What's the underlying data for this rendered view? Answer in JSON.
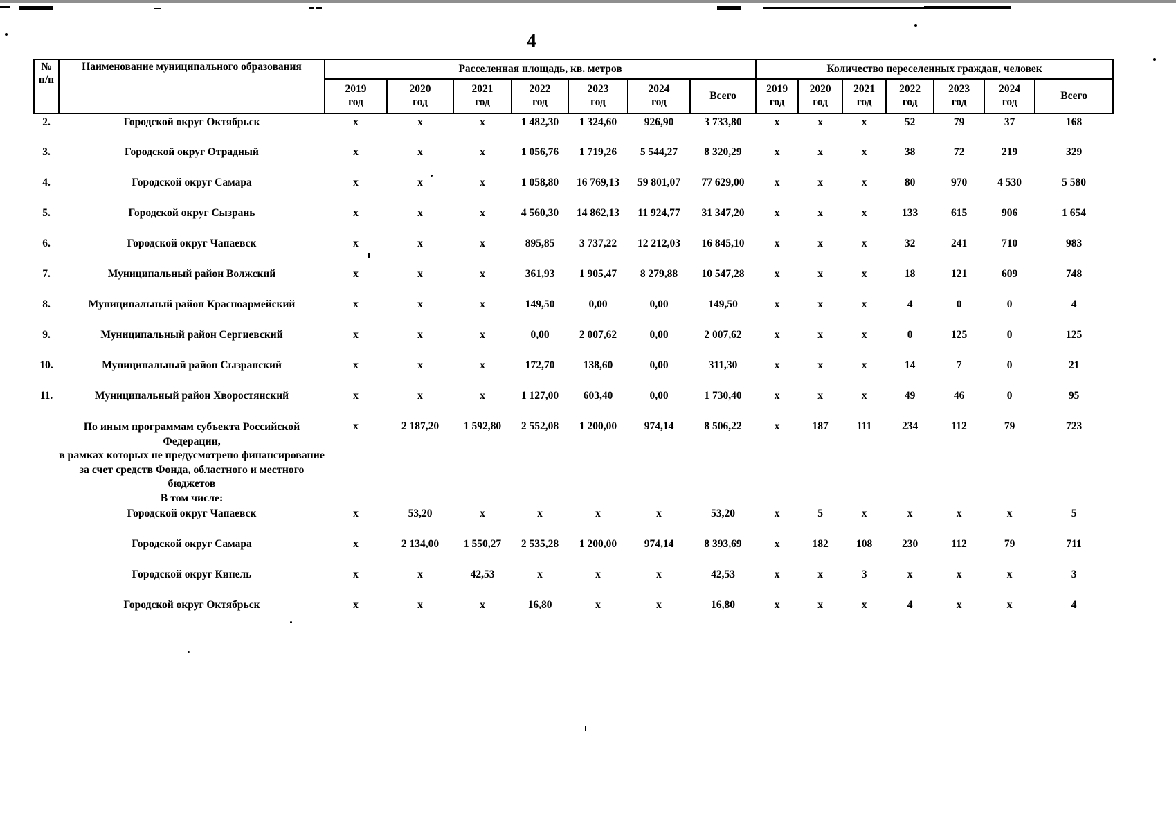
{
  "page": {
    "number": "4"
  },
  "table": {
    "header": {
      "col_num": "№\nп/п",
      "col_name": "Наименование муниципального образования",
      "group_area": "Расселенная площадь, кв. метров",
      "group_citizens": "Количество переселенных граждан, человек",
      "year_cols": [
        "2019\nгод",
        "2020\nгод",
        "2021\nгод",
        "2022\nгод",
        "2023\nгод",
        "2024\nгод",
        "Всего"
      ]
    },
    "rows": [
      {
        "num": "2.",
        "name": "Городской округ Октябрьск",
        "area": [
          "x",
          "x",
          "x",
          "1 482,30",
          "1 324,60",
          "926,90",
          "3 733,80"
        ],
        "citizens": [
          "x",
          "x",
          "x",
          "52",
          "79",
          "37",
          "168"
        ]
      },
      {
        "num": "3.",
        "name": "Городской округ Отрадный",
        "area": [
          "x",
          "x",
          "x",
          "1 056,76",
          "1 719,26",
          "5 544,27",
          "8 320,29"
        ],
        "citizens": [
          "x",
          "x",
          "x",
          "38",
          "72",
          "219",
          "329"
        ]
      },
      {
        "num": "4.",
        "name": "Городской округ Самара",
        "area": [
          "x",
          "x",
          "x",
          "1 058,80",
          "16 769,13",
          "59 801,07",
          "77 629,00"
        ],
        "citizens": [
          "x",
          "x",
          "x",
          "80",
          "970",
          "4 530",
          "5 580"
        ]
      },
      {
        "num": "5.",
        "name": "Городской округ Сызрань",
        "area": [
          "x",
          "x",
          "x",
          "4 560,30",
          "14 862,13",
          "11 924,77",
          "31 347,20"
        ],
        "citizens": [
          "x",
          "x",
          "x",
          "133",
          "615",
          "906",
          "1 654"
        ]
      },
      {
        "num": "6.",
        "name": "Городской округ Чапаевск",
        "area": [
          "x",
          "x",
          "x",
          "895,85",
          "3 737,22",
          "12 212,03",
          "16 845,10"
        ],
        "citizens": [
          "x",
          "x",
          "x",
          "32",
          "241",
          "710",
          "983"
        ]
      },
      {
        "num": "7.",
        "name": "Муниципальный район Волжский",
        "area": [
          "x",
          "x",
          "x",
          "361,93",
          "1 905,47",
          "8 279,88",
          "10 547,28"
        ],
        "citizens": [
          "x",
          "x",
          "x",
          "18",
          "121",
          "609",
          "748"
        ]
      },
      {
        "num": "8.",
        "name": "Муниципальный район Красноармейский",
        "area": [
          "x",
          "x",
          "x",
          "149,50",
          "0,00",
          "0,00",
          "149,50"
        ],
        "citizens": [
          "x",
          "x",
          "x",
          "4",
          "0",
          "0",
          "4"
        ]
      },
      {
        "num": "9.",
        "name": "Муниципальный район Сергиевский",
        "area": [
          "x",
          "x",
          "x",
          "0,00",
          "2 007,62",
          "0,00",
          "2 007,62"
        ],
        "citizens": [
          "x",
          "x",
          "x",
          "0",
          "125",
          "0",
          "125"
        ]
      },
      {
        "num": "10.",
        "name": "Муниципальный район Сызранский",
        "area": [
          "x",
          "x",
          "x",
          "172,70",
          "138,60",
          "0,00",
          "311,30"
        ],
        "citizens": [
          "x",
          "x",
          "x",
          "14",
          "7",
          "0",
          "21"
        ]
      },
      {
        "num": "11.",
        "name": "Муниципальный район Хворостянский",
        "area": [
          "x",
          "x",
          "x",
          "1 127,00",
          "603,40",
          "0,00",
          "1 730,40"
        ],
        "citizens": [
          "x",
          "x",
          "x",
          "49",
          "46",
          "0",
          "95"
        ]
      },
      {
        "num": "",
        "name": "По иным программам субъекта Российской Федерации,\nв рамках которых не предусмотрено финансирование\nза счет средств Фонда, областного и местного\nбюджетов\nВ том числе:",
        "area": [
          "x",
          "2 187,20",
          "1 592,80",
          "2 552,08",
          "1 200,00",
          "974,14",
          "8 506,22"
        ],
        "citizens": [
          "x",
          "187",
          "111",
          "234",
          "112",
          "79",
          "723"
        ]
      },
      {
        "num": "",
        "name": "Городской округ Чапаевск",
        "area": [
          "x",
          "53,20",
          "x",
          "x",
          "x",
          "x",
          "53,20"
        ],
        "citizens": [
          "x",
          "5",
          "x",
          "x",
          "x",
          "x",
          "5"
        ]
      },
      {
        "num": "",
        "name": "Городской округ Самара",
        "area": [
          "x",
          "2 134,00",
          "1 550,27",
          "2 535,28",
          "1 200,00",
          "974,14",
          "8 393,69"
        ],
        "citizens": [
          "x",
          "182",
          "108",
          "230",
          "112",
          "79",
          "711"
        ]
      },
      {
        "num": "",
        "name": "Городской округ Кинель",
        "area": [
          "x",
          "x",
          "42,53",
          "x",
          "x",
          "x",
          "42,53"
        ],
        "citizens": [
          "x",
          "x",
          "3",
          "x",
          "x",
          "x",
          "3"
        ]
      },
      {
        "num": "",
        "name": "Городской округ Октябрьск",
        "area": [
          "x",
          "x",
          "x",
          "16,80",
          "x",
          "x",
          "16,80"
        ],
        "citizens": [
          "x",
          "x",
          "x",
          "4",
          "x",
          "x",
          "4"
        ]
      }
    ]
  }
}
